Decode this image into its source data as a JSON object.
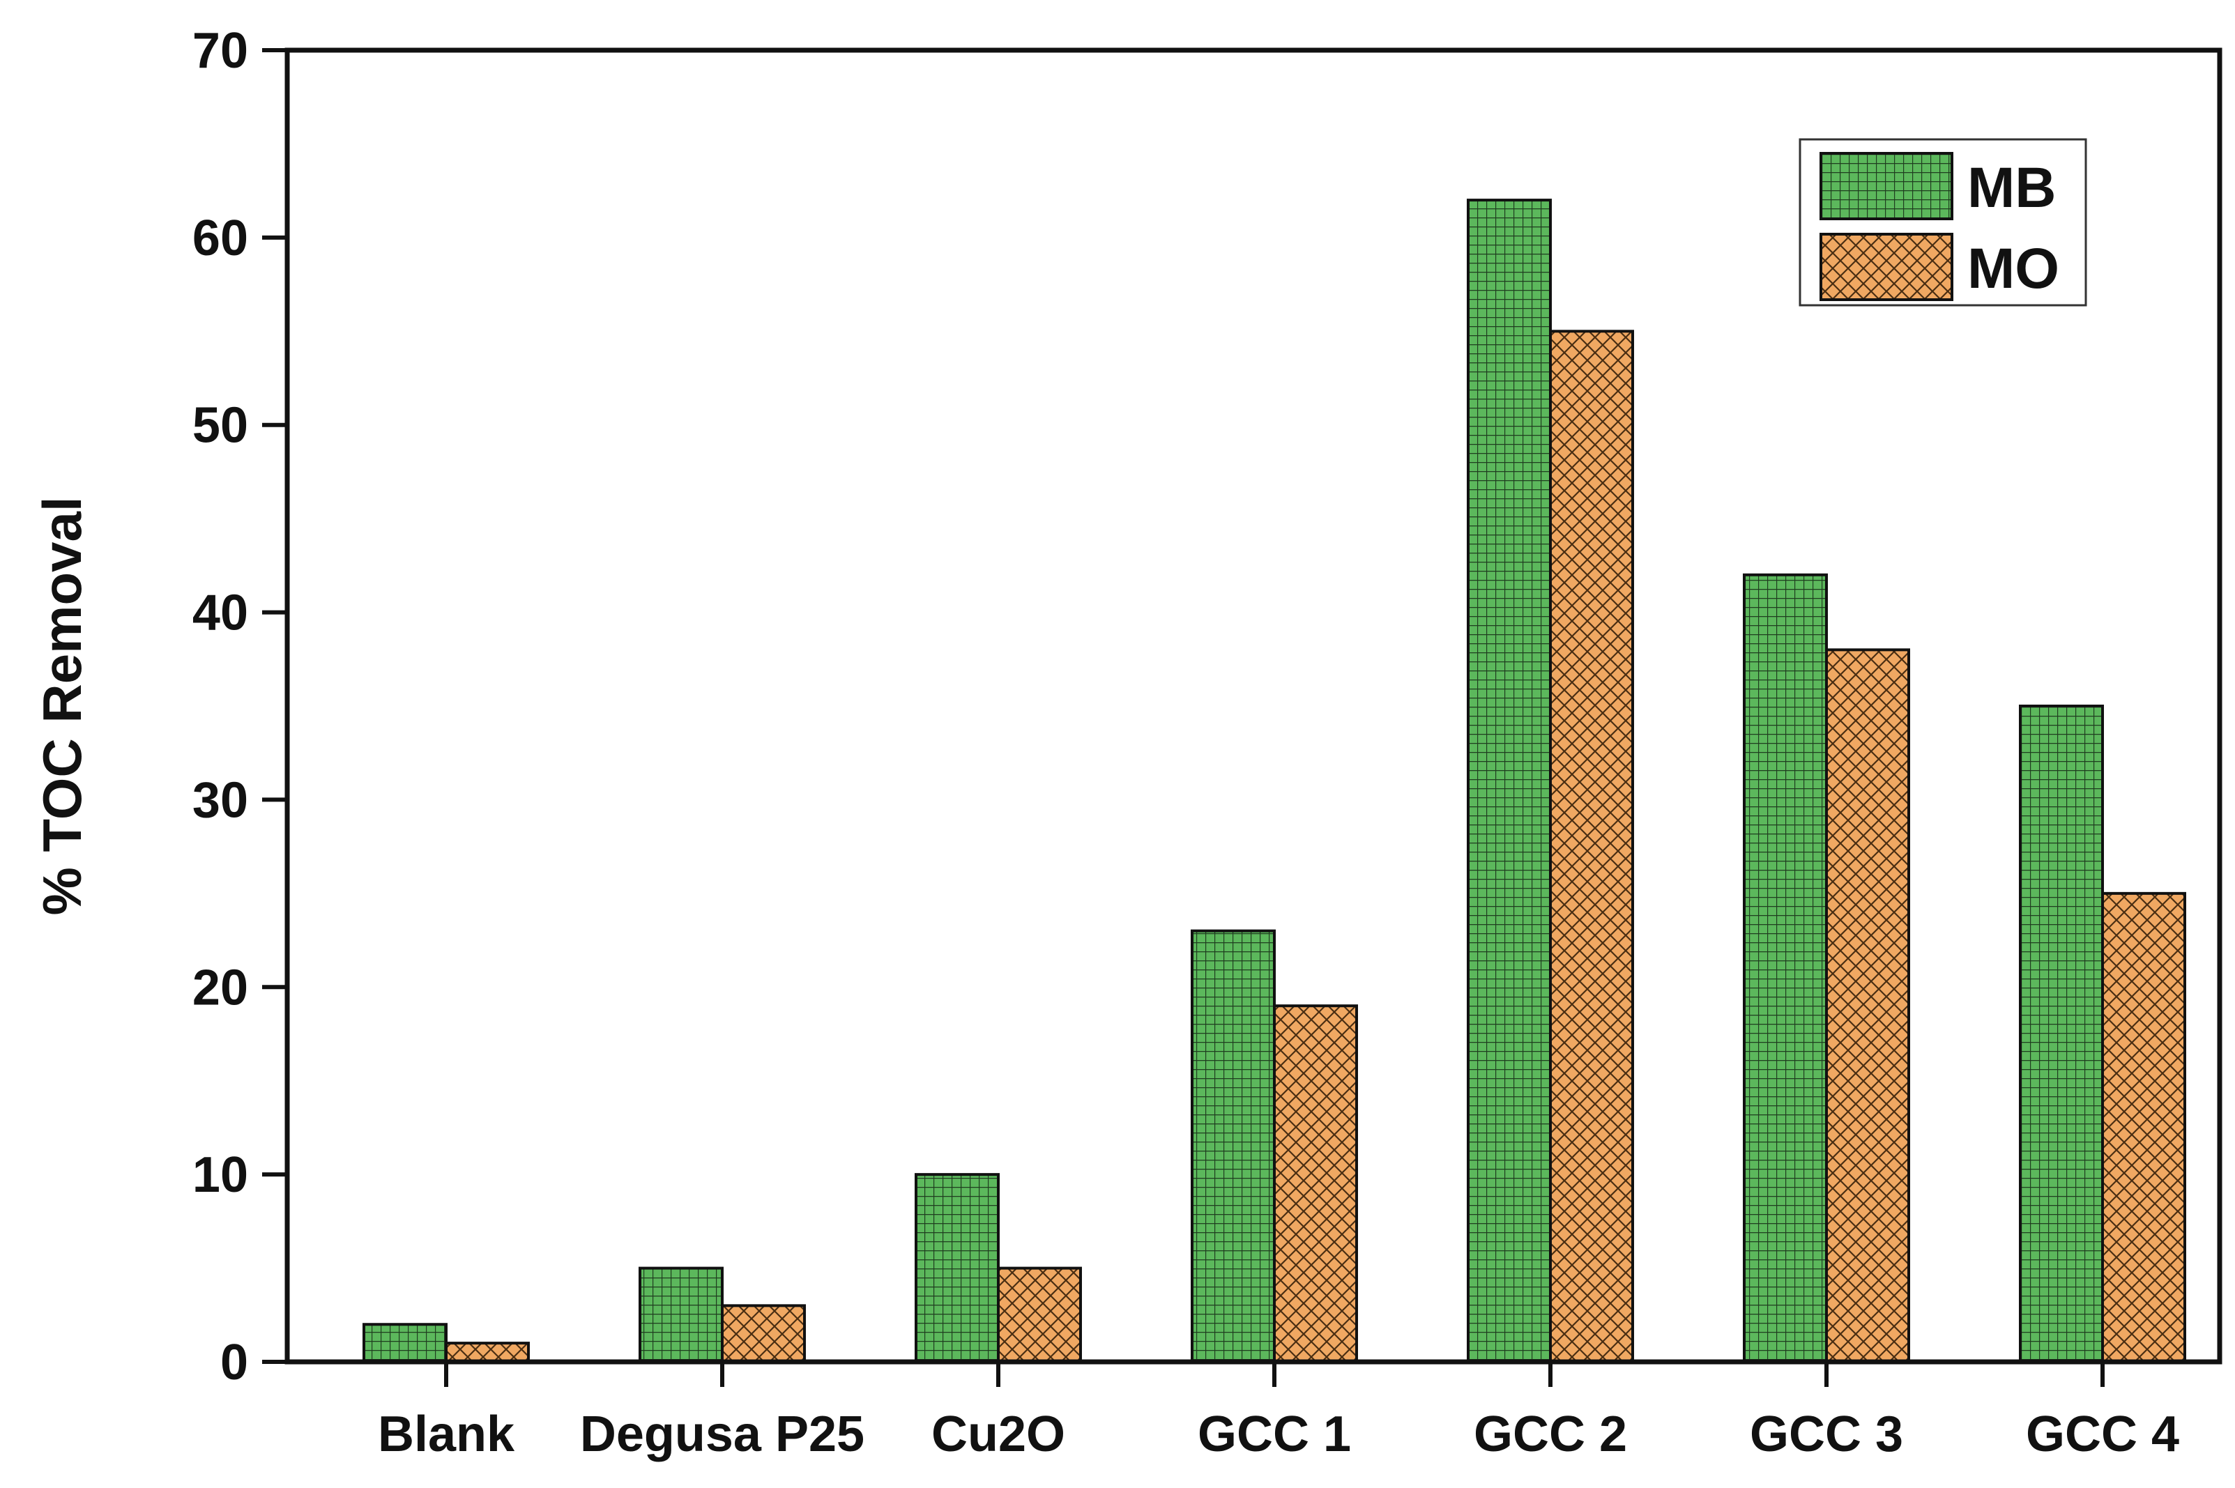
{
  "chart_data": {
    "type": "bar",
    "title": "",
    "xlabel": "",
    "ylabel": "% TOC Removal",
    "ylim": [
      0,
      70
    ],
    "yticks": [
      0,
      10,
      20,
      30,
      40,
      50,
      60,
      70
    ],
    "categories": [
      "Blank",
      "Degusa P25",
      "Cu2O",
      "GCC 1",
      "GCC 2",
      "GCC 3",
      "GCC 4"
    ],
    "series": [
      {
        "name": "MB",
        "color": "#5cb85c",
        "pattern": "grid",
        "values": [
          2,
          5,
          10,
          23,
          62,
          42,
          35
        ]
      },
      {
        "name": "MO",
        "color": "#f0a862",
        "pattern": "crosshatch",
        "values": [
          1,
          3,
          5,
          19,
          55,
          38,
          25
        ]
      }
    ],
    "legend_position": "top-right",
    "grid": false
  }
}
